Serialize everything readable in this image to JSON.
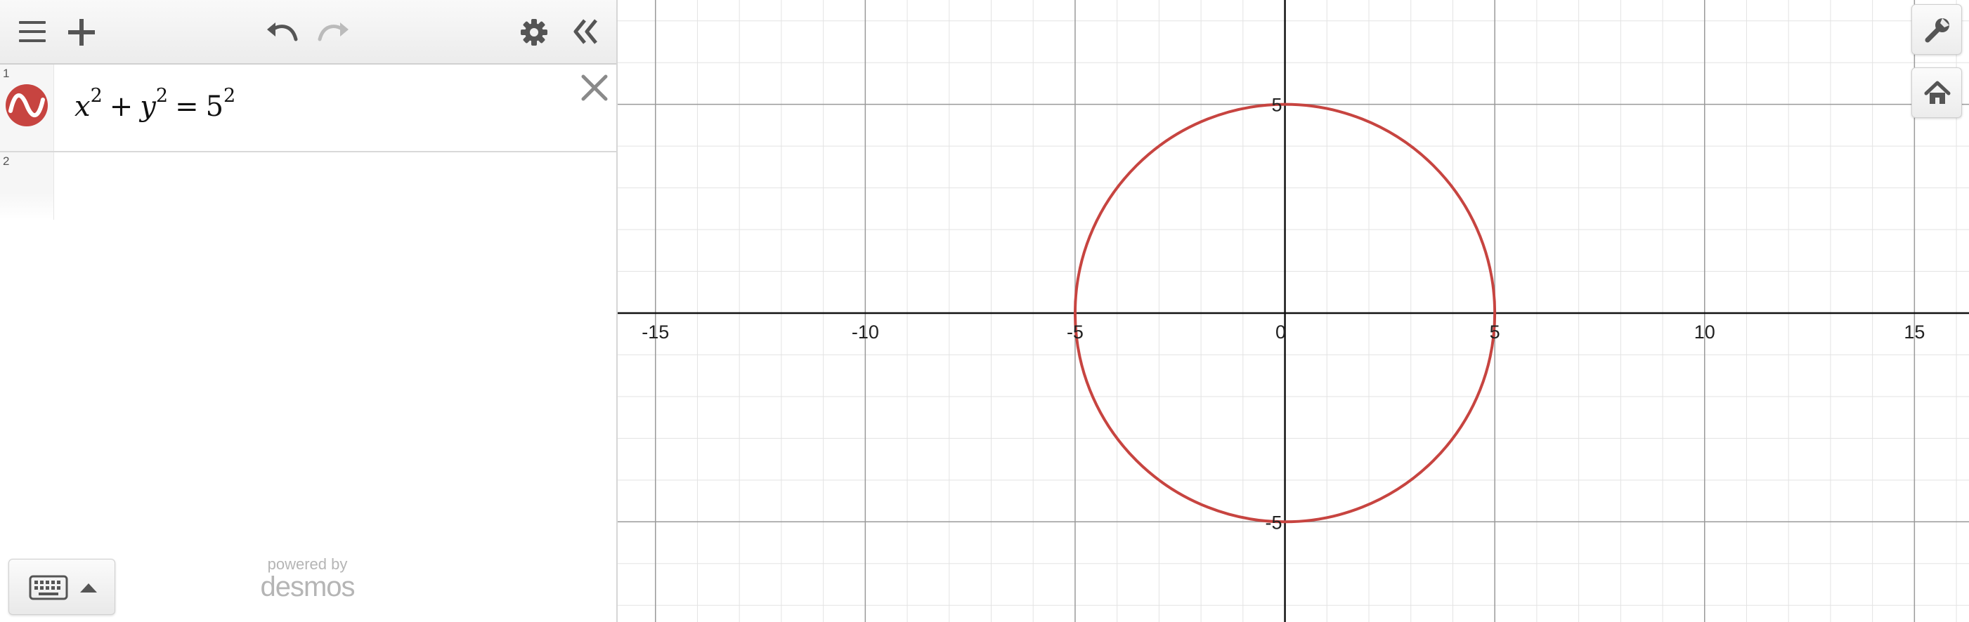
{
  "toolbar": {
    "menu_icon": "hamburger-menu-icon",
    "add_icon": "plus-icon",
    "undo_icon": "undo-icon",
    "redo_icon": "redo-icon",
    "settings_icon": "gear-icon",
    "collapse_icon": "double-chevron-left-icon"
  },
  "expressions": [
    {
      "number": "1",
      "color": "#c74440",
      "icon": "graph-wave-icon",
      "latex": "x^2+y^2=5^2",
      "parts": {
        "x": "x",
        "x_exp": "2",
        "plus": "+",
        "y": "y",
        "y_exp": "2",
        "eq": "=",
        "r": "5",
        "r_exp": "2"
      }
    },
    {
      "number": "2"
    }
  ],
  "footer": {
    "keyboard_icon": "keyboard-icon",
    "caret_icon": "caret-up-icon",
    "powered_by": "powered by",
    "logo": "desmos"
  },
  "graph_controls": {
    "settings_icon": "wrench-icon",
    "home_icon": "home-icon"
  },
  "chart_data": {
    "type": "line",
    "title": "",
    "xlabel": "",
    "ylabel": "",
    "xlim": [
      -15.9,
      16.3
    ],
    "ylim": [
      -7.4,
      7.5
    ],
    "grid": true,
    "major_step": 5,
    "minor_step": 1,
    "x_ticks": [
      "-15",
      "-10",
      "-5",
      "0",
      "5",
      "10",
      "15"
    ],
    "y_ticks": [
      "5",
      "-5"
    ],
    "series": [
      {
        "expression": "x^2+y^2=5^2",
        "shape": "circle",
        "center": [
          0,
          0
        ],
        "radius": 5,
        "color": "#c74440"
      }
    ]
  }
}
